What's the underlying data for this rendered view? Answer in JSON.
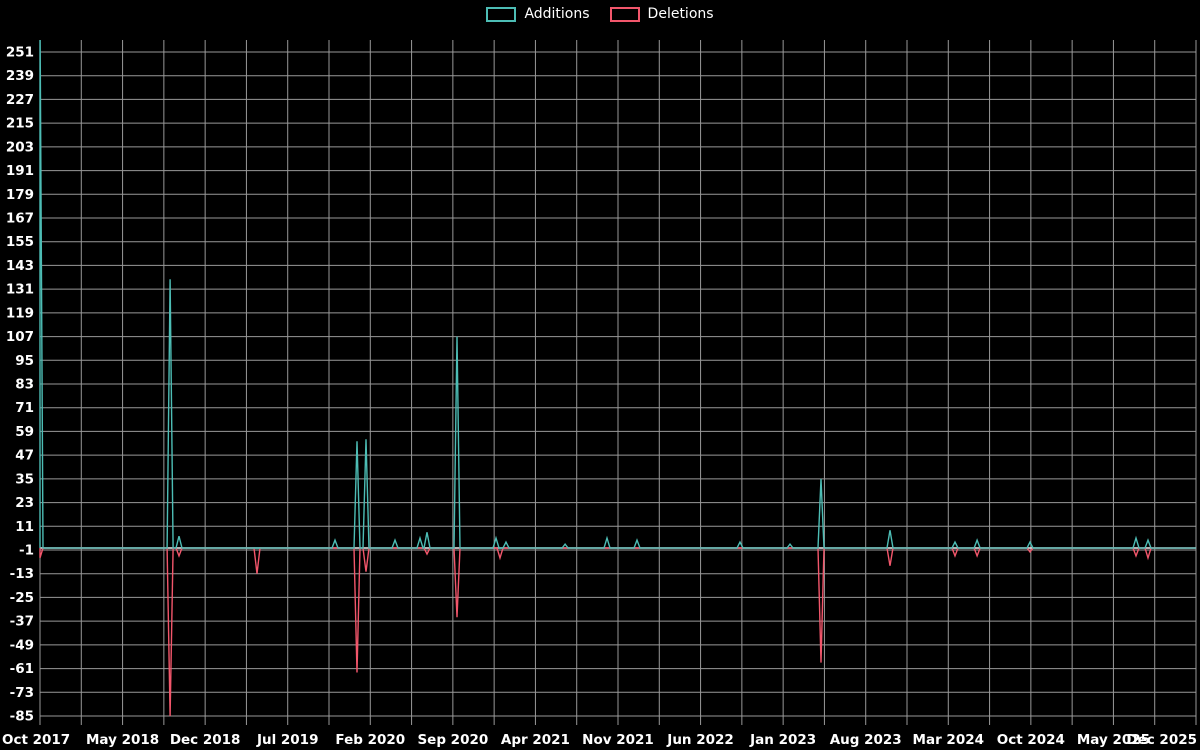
{
  "legend": {
    "items": [
      {
        "label": "Additions",
        "color": "#4dbdb5"
      },
      {
        "label": "Deletions",
        "color": "#f2566b"
      }
    ]
  },
  "chart_data": {
    "type": "line",
    "title": "",
    "xlabel": "",
    "ylabel": "",
    "layout": {
      "background": "#000000",
      "grid": true,
      "grid_color": "#999999",
      "zero_line_color": "#ededed",
      "text_color": "#ffffff",
      "legend_position": "top-center"
    },
    "x_axis": {
      "tick_labels": [
        "Oct 2017",
        "May 2018",
        "Dec 2018",
        "Jul 2019",
        "Feb 2020",
        "Sep 2020",
        "Apr 2021",
        "Nov 2021",
        "Jun 2022",
        "Jan 2023",
        "Aug 2023",
        "Mar 2024",
        "Oct 2024",
        "May 2025",
        "Dec 2025"
      ],
      "gridlines_per_label_interval": 2
    },
    "y_axis": {
      "min": -85,
      "max": 251,
      "step": 12,
      "tick_labels": [
        "251",
        "239",
        "227",
        "215",
        "203",
        "191",
        "179",
        "167",
        "155",
        "143",
        "131",
        "119",
        "107",
        "95",
        "83",
        "71",
        "59",
        "47",
        "35",
        "23",
        "11",
        "-1",
        "-13",
        "-25",
        "-37",
        "-49",
        "-61",
        "-73",
        "-85"
      ]
    },
    "series": [
      {
        "name": "Additions",
        "color": "#4dbdb5",
        "baseline": 0,
        "spikes": [
          [
            0.0,
            270
          ],
          [
            0.1125,
            136
          ],
          [
            0.1202,
            6
          ],
          [
            0.2552,
            4
          ],
          [
            0.2742,
            54
          ],
          [
            0.282,
            55
          ],
          [
            0.3071,
            4
          ],
          [
            0.3287,
            5
          ],
          [
            0.3348,
            8
          ],
          [
            0.3607,
            107
          ],
          [
            0.3945,
            5
          ],
          [
            0.4031,
            3
          ],
          [
            0.4542,
            2
          ],
          [
            0.4905,
            5
          ],
          [
            0.5164,
            4
          ],
          [
            0.6055,
            3
          ],
          [
            0.6488,
            2
          ],
          [
            0.6756,
            35
          ],
          [
            0.7353,
            9
          ],
          [
            0.7915,
            3
          ],
          [
            0.8106,
            4
          ],
          [
            0.8564,
            3
          ],
          [
            0.9481,
            5
          ],
          [
            0.9585,
            4
          ]
        ]
      },
      {
        "name": "Deletions",
        "color": "#f2566b",
        "baseline": 0,
        "spikes": [
          [
            0.0,
            -5
          ],
          [
            0.1125,
            -85
          ],
          [
            0.1202,
            -4
          ],
          [
            0.1877,
            -13
          ],
          [
            0.2742,
            -63
          ],
          [
            0.282,
            -12
          ],
          [
            0.3348,
            -3
          ],
          [
            0.3607,
            -35
          ],
          [
            0.3979,
            -5
          ],
          [
            0.6756,
            -58
          ],
          [
            0.7353,
            -9
          ],
          [
            0.7915,
            -4
          ],
          [
            0.8106,
            -4
          ],
          [
            0.8564,
            -2
          ],
          [
            0.9481,
            -4
          ],
          [
            0.9585,
            -5
          ]
        ]
      }
    ]
  }
}
